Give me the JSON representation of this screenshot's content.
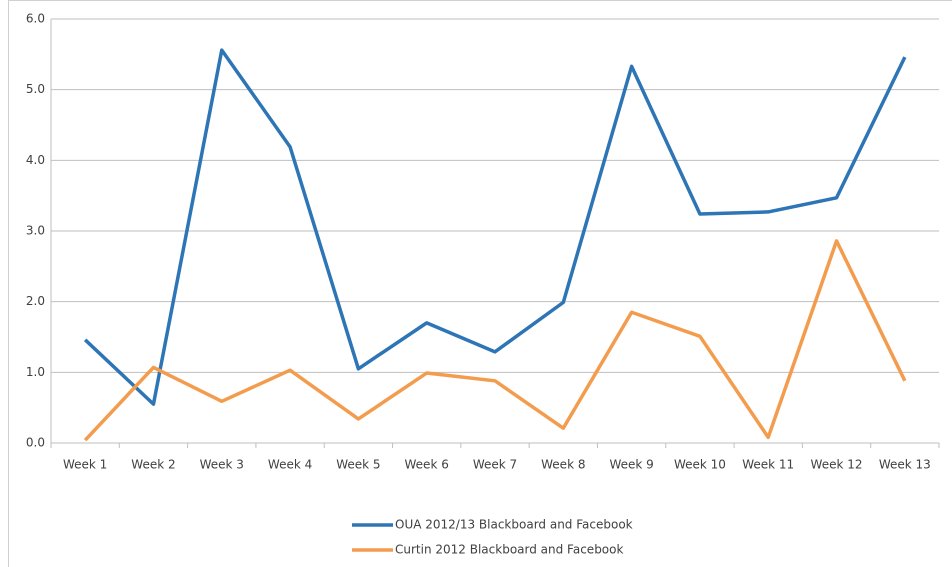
{
  "chart_data": {
    "type": "line",
    "categories": [
      "Week 1",
      "Week 2",
      "Week 3",
      "Week 4",
      "Week 5",
      "Week 6",
      "Week 7",
      "Week 8",
      "Week 9",
      "Week 10",
      "Week 11",
      "Week 12",
      "Week 13"
    ],
    "series": [
      {
        "name": "OUA 2012/13 Blackboard and Facebook",
        "color": "#2e75b6",
        "values": [
          1.46,
          0.55,
          5.56,
          4.19,
          1.05,
          1.7,
          1.29,
          1.99,
          5.33,
          3.24,
          3.27,
          3.47,
          5.46
        ]
      },
      {
        "name": "Curtin 2012 Blackboard and Facebook",
        "color": "#f39c4e",
        "values": [
          0.04,
          1.07,
          0.59,
          1.03,
          0.34,
          0.99,
          0.88,
          0.21,
          1.85,
          1.51,
          0.08,
          2.86,
          0.88
        ]
      }
    ],
    "ylim": [
      0,
      6
    ],
    "yticks": [
      {
        "value": 0,
        "label": "0.0"
      },
      {
        "value": 1,
        "label": "1.0"
      },
      {
        "value": 2,
        "label": "2.0"
      },
      {
        "value": 3,
        "label": "3.0"
      },
      {
        "value": 4,
        "label": "4.0"
      },
      {
        "value": 5,
        "label": "5.0"
      },
      {
        "value": 6,
        "label": "6.0"
      }
    ],
    "grid": true,
    "legend": "bottom"
  }
}
